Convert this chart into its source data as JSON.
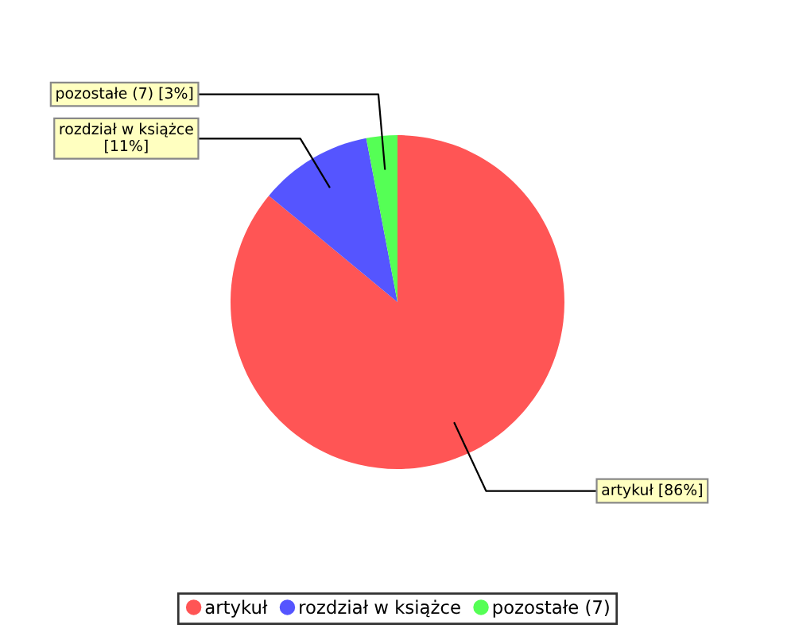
{
  "chart_data": {
    "type": "pie",
    "categories": [
      "artykuł",
      "rozdział w książce",
      "pozostałe (7)"
    ],
    "values": [
      86,
      11,
      3
    ],
    "colors": [
      "#ff5555",
      "#5555ff",
      "#55ff55"
    ],
    "value_labels": [
      "[86%]",
      "[11%]",
      "[3%]"
    ],
    "legend": "bottom"
  }
}
